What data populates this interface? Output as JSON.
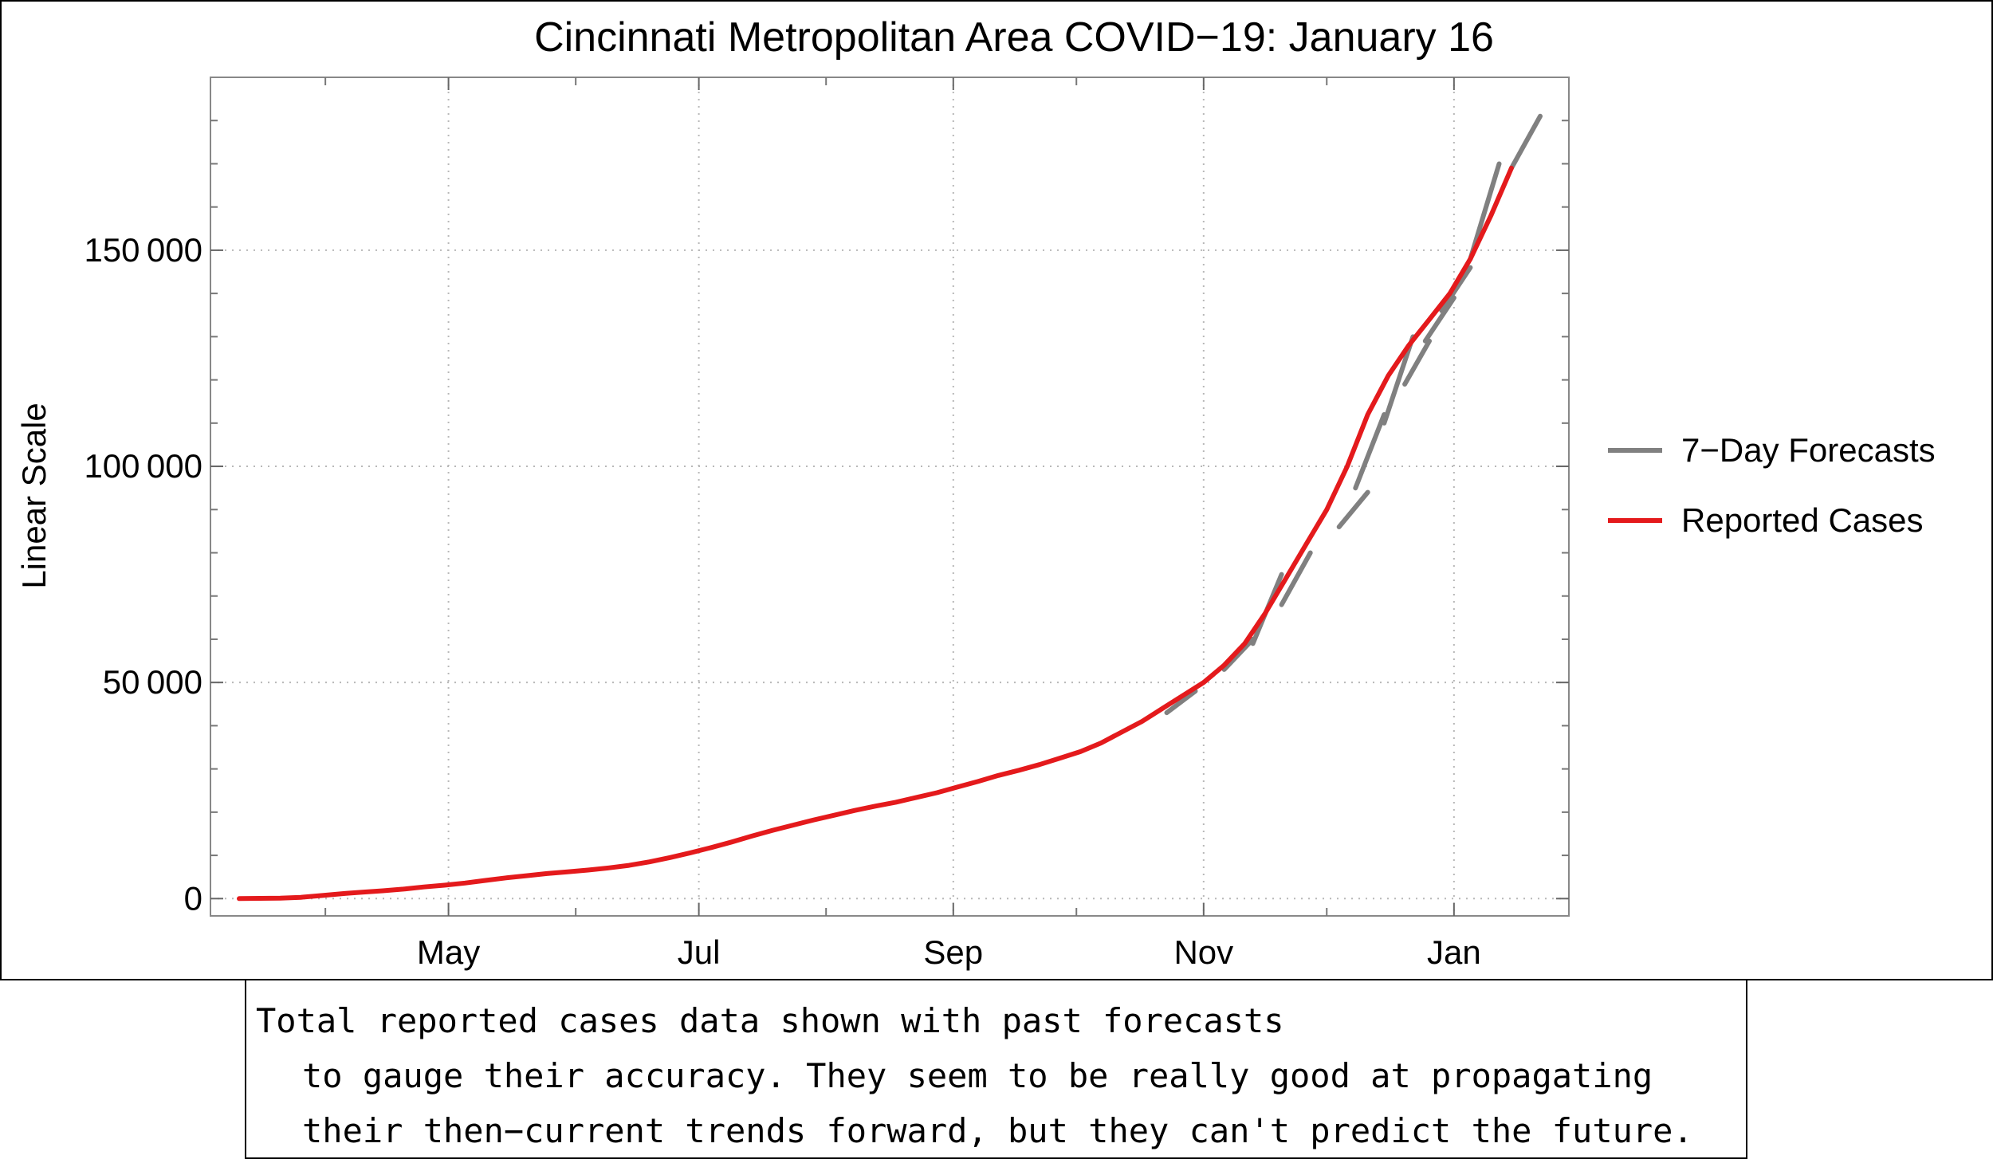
{
  "chart_data": {
    "type": "line",
    "title": "Cincinnati Metropolitan Area COVID−19: January 16",
    "xlabel": "",
    "ylabel": "Linear Scale",
    "x_unit": "days since March 1, 2020",
    "xlim": [
      3,
      334
    ],
    "ylim": [
      -4000,
      190000
    ],
    "grid": true,
    "x_ticks": [
      {
        "label": "May",
        "x": 61
      },
      {
        "label": "Jul",
        "x": 122
      },
      {
        "label": "Sep",
        "x": 184
      },
      {
        "label": "Nov",
        "x": 245
      },
      {
        "label": "Jan",
        "x": 306
      }
    ],
    "x_minor_ticks": [
      31,
      92,
      153,
      214,
      275
    ],
    "y_ticks": [
      {
        "label": "0",
        "y": 0
      },
      {
        "label": "50 000",
        "y": 50000
      },
      {
        "label": "100 000",
        "y": 100000
      },
      {
        "label": "150 000",
        "y": 150000
      }
    ],
    "legend_position": "right",
    "series": [
      {
        "name": "Reported Cases",
        "color": "#e41a1c",
        "x": [
          10,
          20,
          25,
          30,
          36,
          40,
          45,
          50,
          55,
          60,
          65,
          70,
          75,
          80,
          85,
          90,
          95,
          100,
          105,
          110,
          115,
          120,
          125,
          130,
          135,
          140,
          145,
          150,
          155,
          160,
          165,
          170,
          175,
          180,
          185,
          190,
          195,
          200,
          205,
          210,
          215,
          220,
          225,
          230,
          235,
          240,
          245,
          250,
          255,
          260,
          265,
          270,
          275,
          280,
          285,
          290,
          295,
          300,
          305,
          310,
          315,
          320
        ],
        "values": [
          0,
          100,
          300,
          700,
          1200,
          1500,
          1800,
          2200,
          2700,
          3100,
          3600,
          4200,
          4800,
          5300,
          5800,
          6200,
          6600,
          7100,
          7700,
          8500,
          9500,
          10600,
          11800,
          13100,
          14500,
          15800,
          17000,
          18200,
          19300,
          20400,
          21400,
          22300,
          23400,
          24500,
          25800,
          27100,
          28500,
          29700,
          31000,
          32500,
          34000,
          36000,
          38500,
          41000,
          44000,
          47000,
          50000,
          54000,
          59000,
          66000,
          74000,
          82000,
          90000,
          100000,
          112000,
          121000,
          128000,
          134000,
          140000,
          148000,
          158000,
          169000
        ]
      },
      {
        "name": "7−Day Forecasts",
        "color": "#808080",
        "segments": [
          {
            "x": [
              236,
              243
            ],
            "values": [
              43000,
              48000
            ]
          },
          {
            "x": [
              250,
              257
            ],
            "values": [
              53000,
              60000
            ]
          },
          {
            "x": [
              257,
              264
            ],
            "values": [
              59000,
              75000
            ]
          },
          {
            "x": [
              264,
              271
            ],
            "values": [
              68000,
              80000
            ]
          },
          {
            "x": [
              278,
              285
            ],
            "values": [
              86000,
              94000
            ]
          },
          {
            "x": [
              282,
              289
            ],
            "values": [
              95000,
              112000
            ]
          },
          {
            "x": [
              289,
              296
            ],
            "values": [
              110000,
              130000
            ]
          },
          {
            "x": [
              294,
              300
            ],
            "values": [
              119000,
              129000
            ]
          },
          {
            "x": [
              299,
              306
            ],
            "values": [
              129000,
              139000
            ]
          },
          {
            "x": [
              303,
              310
            ],
            "values": [
              136000,
              146000
            ]
          },
          {
            "x": [
              310,
              317
            ],
            "values": [
              148000,
              170000
            ]
          },
          {
            "x": [
              320,
              327
            ],
            "values": [
              169000,
              181000
            ]
          }
        ]
      }
    ]
  },
  "caption": {
    "line1": "Total reported cases data shown with past forecasts",
    "line2": "to gauge their accuracy. They seem to be really good at propagating",
    "line3": "their then−current trends forward, but they can't predict the future."
  }
}
